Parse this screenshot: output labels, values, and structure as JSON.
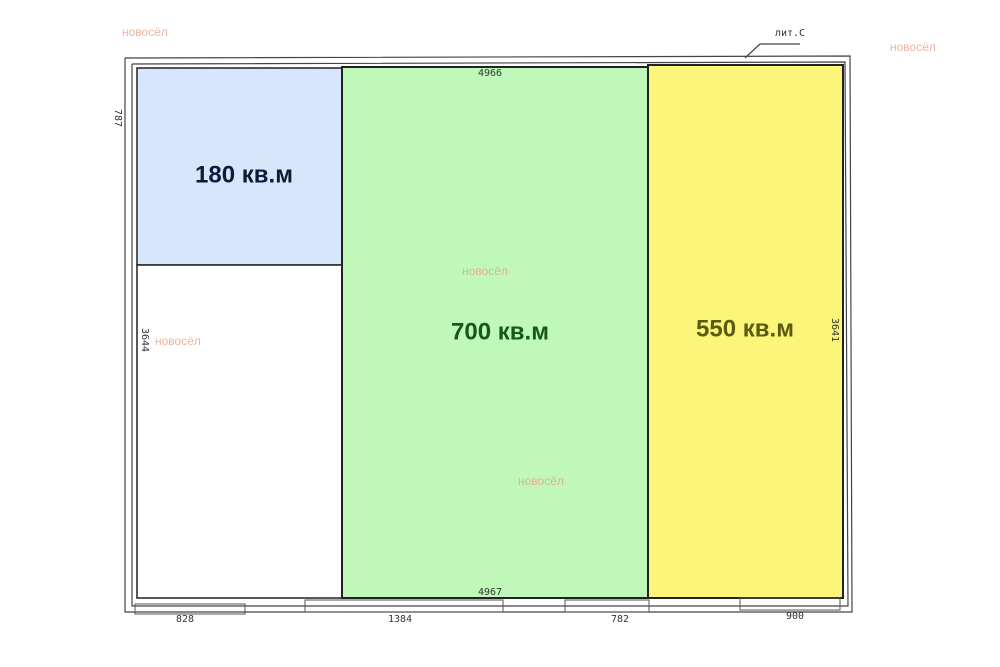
{
  "rooms": [
    {
      "area": "180 кв.м"
    },
    {
      "area": "700 кв.м"
    },
    {
      "area": "550 кв.м"
    }
  ],
  "building_label": "лит.С",
  "dimensions": {
    "top": "4966",
    "bottom_inner": "4967",
    "left_top": "787",
    "left": "3644",
    "right": "3641",
    "bottom": [
      "828",
      "1384",
      "782",
      "900"
    ]
  },
  "watermarks": [
    "новосёл",
    "новосёл",
    "новосёл",
    "новосёл",
    "новосёл"
  ]
}
